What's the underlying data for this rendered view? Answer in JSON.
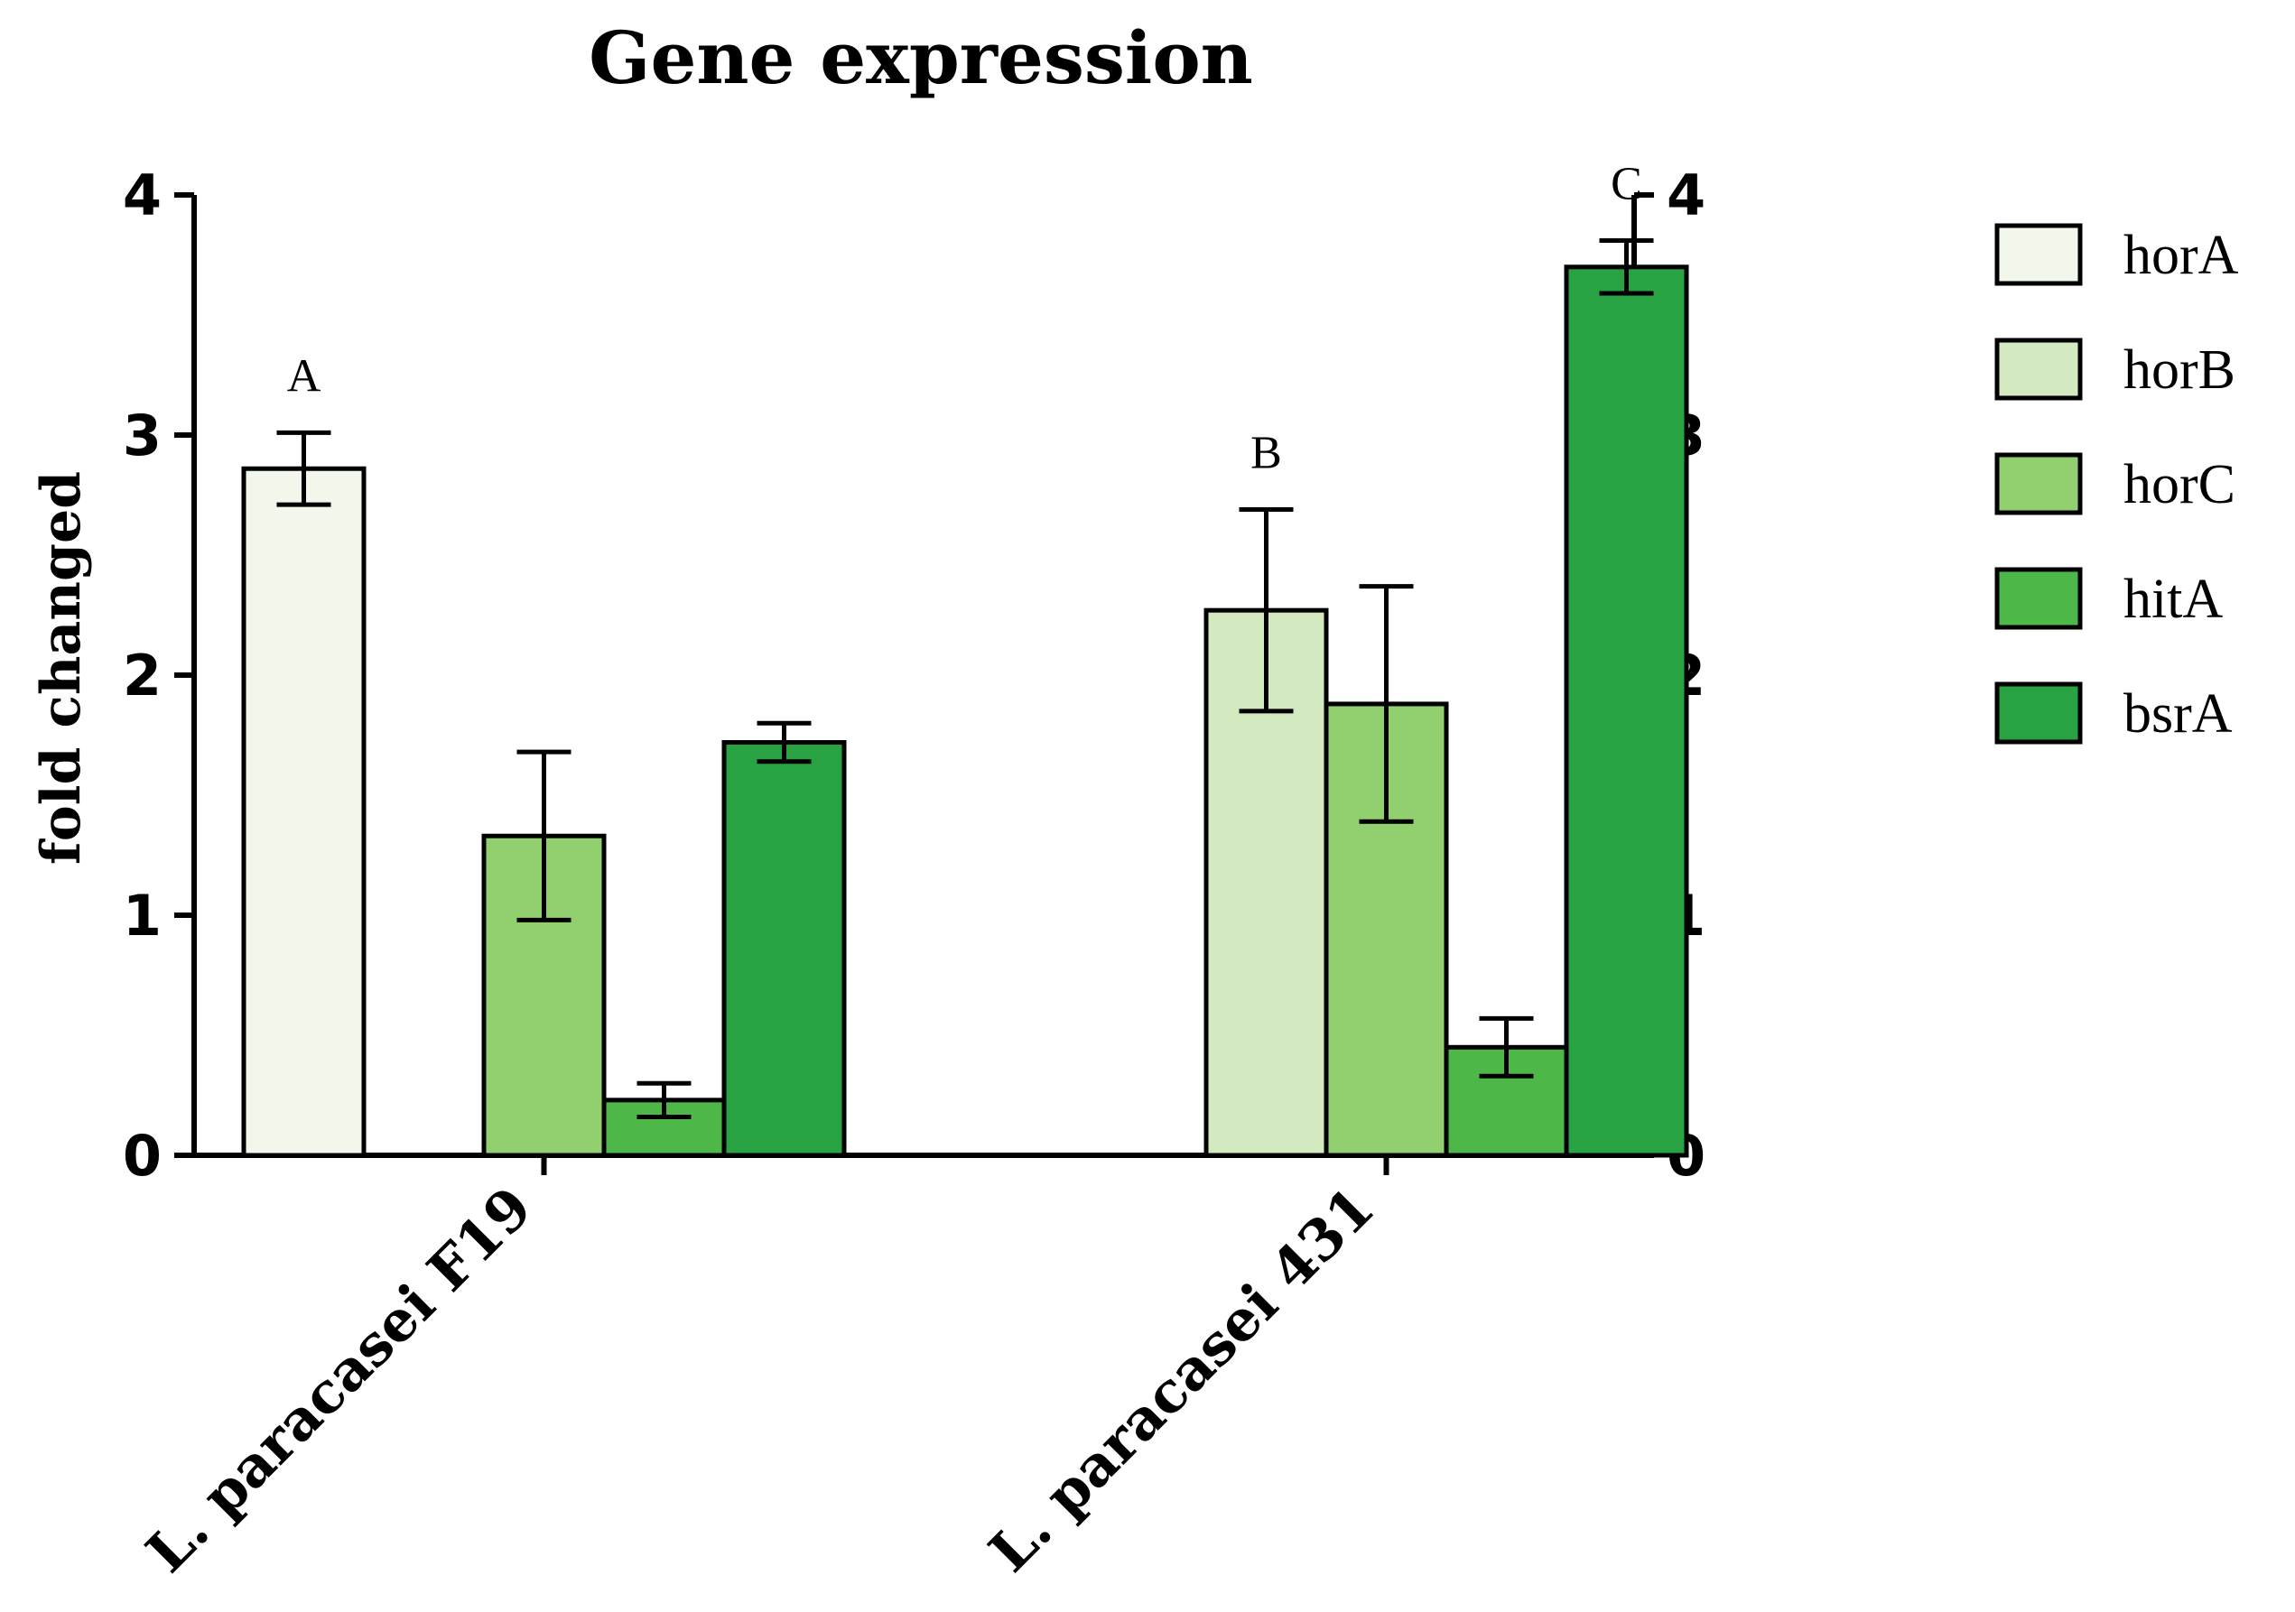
{
  "chart_data": {
    "type": "bar",
    "title": "Gene expression",
    "ylabel": "fold changed",
    "ylim": [
      0,
      4
    ],
    "yticks": [
      0,
      1,
      2,
      3,
      4
    ],
    "secondary_yticks": [
      0,
      1,
      2,
      3,
      4
    ],
    "categories": [
      "L. paracasei F19",
      "L. paracasei 431"
    ],
    "series": [
      {
        "name": "horA",
        "color": "#f2f7ec",
        "values": [
          2.86,
          null
        ],
        "errors": [
          0.15,
          null
        ]
      },
      {
        "name": "horB",
        "color": "#d3e9c0",
        "values": [
          null,
          2.27
        ],
        "errors": [
          null,
          0.42
        ]
      },
      {
        "name": "horC",
        "color": "#92cf6e",
        "values": [
          1.33,
          1.88
        ],
        "errors": [
          0.35,
          0.49
        ]
      },
      {
        "name": "hitA",
        "color": "#4db848",
        "values": [
          0.23,
          0.45
        ],
        "errors": [
          0.07,
          0.12
        ]
      },
      {
        "name": "bsrA",
        "color": "#29a244",
        "values": [
          1.72,
          3.7
        ],
        "errors": [
          0.08,
          0.11
        ]
      }
    ],
    "annotations": [
      {
        "text": "A",
        "category": 0,
        "series": 0
      },
      {
        "text": "B",
        "category": 1,
        "series": 1
      },
      {
        "text": "C",
        "category": 1,
        "series": 4
      }
    ],
    "legend": "right"
  }
}
